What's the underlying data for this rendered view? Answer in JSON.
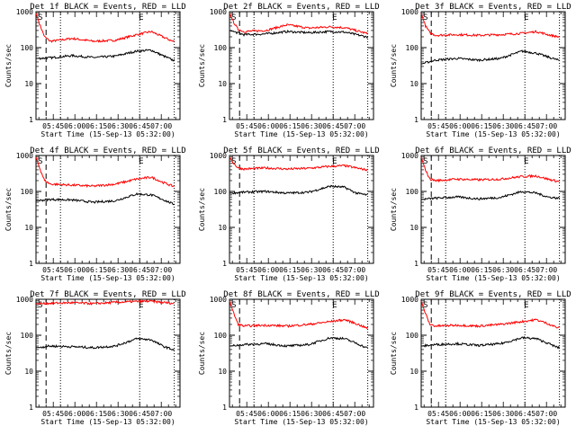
{
  "figure": {
    "xlabel": "Start Time (15-Sep-13 05:32:00)",
    "ylabel": "Counts/sec"
  },
  "chart_data": [
    {
      "title": "Det 1f BLACK = Events, RED = LLD",
      "type": "line",
      "xlabel": "Start Time (15-Sep-13 05:32:00)",
      "ylabel": "Counts/sec",
      "ylog": true,
      "ylim": [
        1,
        1000
      ],
      "x_ticks": [
        "05:45",
        "06:00",
        "06:15",
        "06:30",
        "06:45",
        "07:00"
      ],
      "y_ticks": [
        "1",
        "10",
        "100",
        "1000"
      ],
      "markers": [
        "S",
        "E"
      ],
      "series": [
        {
          "name": "BLACK = Events",
          "color": "#000000",
          "x_minutes": [
            0,
            10,
            25,
            40,
            55,
            70,
            80,
            88,
            95
          ],
          "values": [
            50,
            52,
            60,
            53,
            58,
            80,
            85,
            60,
            45
          ]
        },
        {
          "name": "RED = LLD",
          "color": "#ff0000",
          "x_minutes": [
            0,
            3,
            6,
            10,
            25,
            40,
            55,
            70,
            80,
            88,
            95
          ],
          "values": [
            900,
            400,
            200,
            150,
            180,
            150,
            160,
            230,
            280,
            200,
            150
          ]
        }
      ]
    },
    {
      "title": "Det 2f BLACK = Events, RED = LLD",
      "type": "line",
      "xlabel": "Start Time (15-Sep-13 05:32:00)",
      "ylabel": "Counts/sec",
      "ylog": true,
      "ylim": [
        1,
        1000
      ],
      "x_ticks": [
        "05:45",
        "06:00",
        "06:15",
        "06:30",
        "06:45",
        "07:00"
      ],
      "y_ticks": [
        "1",
        "10",
        "100",
        "1000"
      ],
      "markers": [
        "S",
        "E"
      ],
      "series": [
        {
          "name": "BLACK = Events",
          "color": "#000000",
          "x_minutes": [
            0,
            10,
            25,
            40,
            55,
            70,
            80,
            95
          ],
          "values": [
            300,
            230,
            240,
            280,
            260,
            280,
            270,
            200
          ]
        },
        {
          "name": "RED = LLD",
          "color": "#ff0000",
          "x_minutes": [
            0,
            3,
            6,
            10,
            25,
            40,
            55,
            70,
            80,
            95
          ],
          "values": [
            900,
            500,
            320,
            280,
            300,
            430,
            350,
            380,
            360,
            250
          ]
        }
      ]
    },
    {
      "title": "Det 3f BLACK = Events, RED = LLD",
      "type": "line",
      "xlabel": "Start Time (15-Sep-13 05:32:00)",
      "ylabel": "Counts/sec",
      "ylog": true,
      "ylim": [
        1,
        1000
      ],
      "x_ticks": [
        "05:45",
        "06:00",
        "06:15",
        "06:30",
        "06:45",
        "07:00"
      ],
      "y_ticks": [
        "1",
        "10",
        "100",
        "1000"
      ],
      "markers": [
        "S",
        "E"
      ],
      "series": [
        {
          "name": "BLACK = Events",
          "color": "#000000",
          "x_minutes": [
            0,
            10,
            25,
            40,
            55,
            70,
            80,
            88,
            95
          ],
          "values": [
            35,
            45,
            50,
            45,
            50,
            80,
            70,
            55,
            45
          ]
        },
        {
          "name": "RED = LLD",
          "color": "#ff0000",
          "x_minutes": [
            0,
            3,
            6,
            10,
            25,
            40,
            55,
            70,
            80,
            88,
            95
          ],
          "values": [
            900,
            400,
            260,
            220,
            230,
            220,
            230,
            250,
            280,
            230,
            200
          ]
        }
      ]
    },
    {
      "title": "Det 4f BLACK = Events, RED = LLD",
      "type": "line",
      "xlabel": "Start Time (15-Sep-13 05:32:00)",
      "ylabel": "Counts/sec",
      "ylog": true,
      "ylim": [
        1,
        1000
      ],
      "x_ticks": [
        "05:45",
        "06:00",
        "06:15",
        "06:30",
        "06:45",
        "07:00"
      ],
      "y_ticks": [
        "1",
        "10",
        "100",
        "1000"
      ],
      "markers": [
        "S",
        "E"
      ],
      "series": [
        {
          "name": "BLACK = Events",
          "color": "#000000",
          "x_minutes": [
            0,
            10,
            25,
            40,
            55,
            70,
            80,
            88,
            95
          ],
          "values": [
            55,
            60,
            58,
            50,
            55,
            85,
            80,
            60,
            45
          ]
        },
        {
          "name": "RED = LLD",
          "color": "#ff0000",
          "x_minutes": [
            0,
            3,
            6,
            10,
            25,
            40,
            55,
            70,
            80,
            88,
            95
          ],
          "values": [
            900,
            400,
            200,
            160,
            150,
            140,
            160,
            220,
            250,
            180,
            140
          ]
        }
      ]
    },
    {
      "title": "Det 5f BLACK = Events, RED = LLD",
      "type": "line",
      "xlabel": "Start Time (15-Sep-13 05:32:00)",
      "ylabel": "Counts/sec",
      "ylog": true,
      "ylim": [
        1,
        1000
      ],
      "x_ticks": [
        "05:45",
        "06:00",
        "06:15",
        "06:30",
        "06:45",
        "07:00"
      ],
      "y_ticks": [
        "1",
        "10",
        "100",
        "1000"
      ],
      "markers": [
        "S",
        "E"
      ],
      "series": [
        {
          "name": "BLACK = Events",
          "color": "#000000",
          "x_minutes": [
            0,
            10,
            25,
            40,
            55,
            70,
            80,
            88,
            95
          ],
          "values": [
            90,
            95,
            100,
            90,
            95,
            140,
            130,
            90,
            80
          ]
        },
        {
          "name": "RED = LLD",
          "color": "#ff0000",
          "x_minutes": [
            0,
            3,
            6,
            10,
            25,
            40,
            55,
            70,
            80,
            88,
            95
          ],
          "values": [
            900,
            600,
            450,
            420,
            450,
            420,
            440,
            500,
            520,
            450,
            400
          ]
        }
      ]
    },
    {
      "title": "Det 6f BLACK = Events, RED = LLD",
      "type": "line",
      "xlabel": "Start Time (15-Sep-13 05:32:00)",
      "ylabel": "Counts/sec",
      "ylog": true,
      "ylim": [
        1,
        1000
      ],
      "x_ticks": [
        "05:45",
        "06:00",
        "06:15",
        "06:30",
        "06:45",
        "07:00"
      ],
      "y_ticks": [
        "1",
        "10",
        "100",
        "1000"
      ],
      "markers": [
        "S",
        "E"
      ],
      "series": [
        {
          "name": "BLACK = Events",
          "color": "#000000",
          "x_minutes": [
            0,
            10,
            25,
            40,
            55,
            70,
            80,
            88,
            95
          ],
          "values": [
            60,
            65,
            70,
            62,
            68,
            100,
            90,
            70,
            65
          ]
        },
        {
          "name": "RED = LLD",
          "color": "#ff0000",
          "x_minutes": [
            0,
            3,
            6,
            10,
            25,
            40,
            55,
            70,
            80,
            88,
            95
          ],
          "values": [
            900,
            400,
            220,
            200,
            220,
            210,
            220,
            260,
            270,
            220,
            190
          ]
        }
      ]
    },
    {
      "title": "Det 7f BLACK = Events, RED = LLD",
      "type": "line",
      "xlabel": "Start Time (15-Sep-13 05:32:00)",
      "ylabel": "Counts/sec",
      "ylog": true,
      "ylim": [
        1,
        1000
      ],
      "x_ticks": [
        "05:45",
        "06:00",
        "06:15",
        "06:30",
        "06:45",
        "07:00"
      ],
      "y_ticks": [
        "1",
        "10",
        "100",
        "1000"
      ],
      "markers": [
        "S",
        "E"
      ],
      "series": [
        {
          "name": "BLACK = Events",
          "color": "#000000",
          "x_minutes": [
            0,
            10,
            25,
            40,
            55,
            70,
            80,
            88,
            95
          ],
          "values": [
            45,
            50,
            48,
            45,
            50,
            80,
            75,
            50,
            40
          ]
        },
        {
          "name": "RED = LLD",
          "color": "#ff0000",
          "x_minutes": [
            0,
            10,
            25,
            40,
            55,
            70,
            80,
            88,
            95
          ],
          "values": [
            750,
            780,
            800,
            760,
            820,
            870,
            880,
            820,
            770
          ]
        }
      ]
    },
    {
      "title": "Det 8f BLACK = Events, RED = LLD",
      "type": "line",
      "xlabel": "Start Time (15-Sep-13 05:32:00)",
      "ylabel": "Counts/sec",
      "ylog": true,
      "ylim": [
        1,
        1000
      ],
      "x_ticks": [
        "05:45",
        "06:00",
        "06:15",
        "06:30",
        "06:45",
        "07:00"
      ],
      "y_ticks": [
        "1",
        "10",
        "100",
        "1000"
      ],
      "markers": [
        "S",
        "E"
      ],
      "series": [
        {
          "name": "BLACK = Events",
          "color": "#000000",
          "x_minutes": [
            0,
            10,
            25,
            40,
            55,
            70,
            80,
            88,
            95
          ],
          "values": [
            50,
            55,
            58,
            50,
            55,
            85,
            80,
            60,
            45
          ]
        },
        {
          "name": "RED = LLD",
          "color": "#ff0000",
          "x_minutes": [
            0,
            3,
            6,
            10,
            25,
            40,
            55,
            70,
            80,
            88,
            95
          ],
          "values": [
            900,
            400,
            200,
            180,
            190,
            180,
            200,
            240,
            270,
            210,
            160
          ]
        }
      ]
    },
    {
      "title": "Det 9f BLACK = Events, RED = LLD",
      "type": "line",
      "xlabel": "Start Time (15-Sep-13 05:32:00)",
      "ylabel": "Counts/sec",
      "ylog": true,
      "ylim": [
        1,
        1000
      ],
      "x_ticks": [
        "05:45",
        "06:00",
        "06:15",
        "06:30",
        "06:45",
        "07:00"
      ],
      "y_ticks": [
        "1",
        "10",
        "100",
        "1000"
      ],
      "markers": [
        "S",
        "E"
      ],
      "series": [
        {
          "name": "BLACK = Events",
          "color": "#000000",
          "x_minutes": [
            0,
            10,
            25,
            40,
            55,
            70,
            80,
            88,
            95
          ],
          "values": [
            50,
            55,
            58,
            52,
            58,
            85,
            80,
            60,
            45
          ]
        },
        {
          "name": "RED = LLD",
          "color": "#ff0000",
          "x_minutes": [
            0,
            3,
            6,
            10,
            25,
            40,
            55,
            70,
            80,
            88,
            95
          ],
          "values": [
            900,
            400,
            200,
            180,
            190,
            180,
            200,
            240,
            270,
            210,
            160
          ]
        }
      ]
    }
  ]
}
